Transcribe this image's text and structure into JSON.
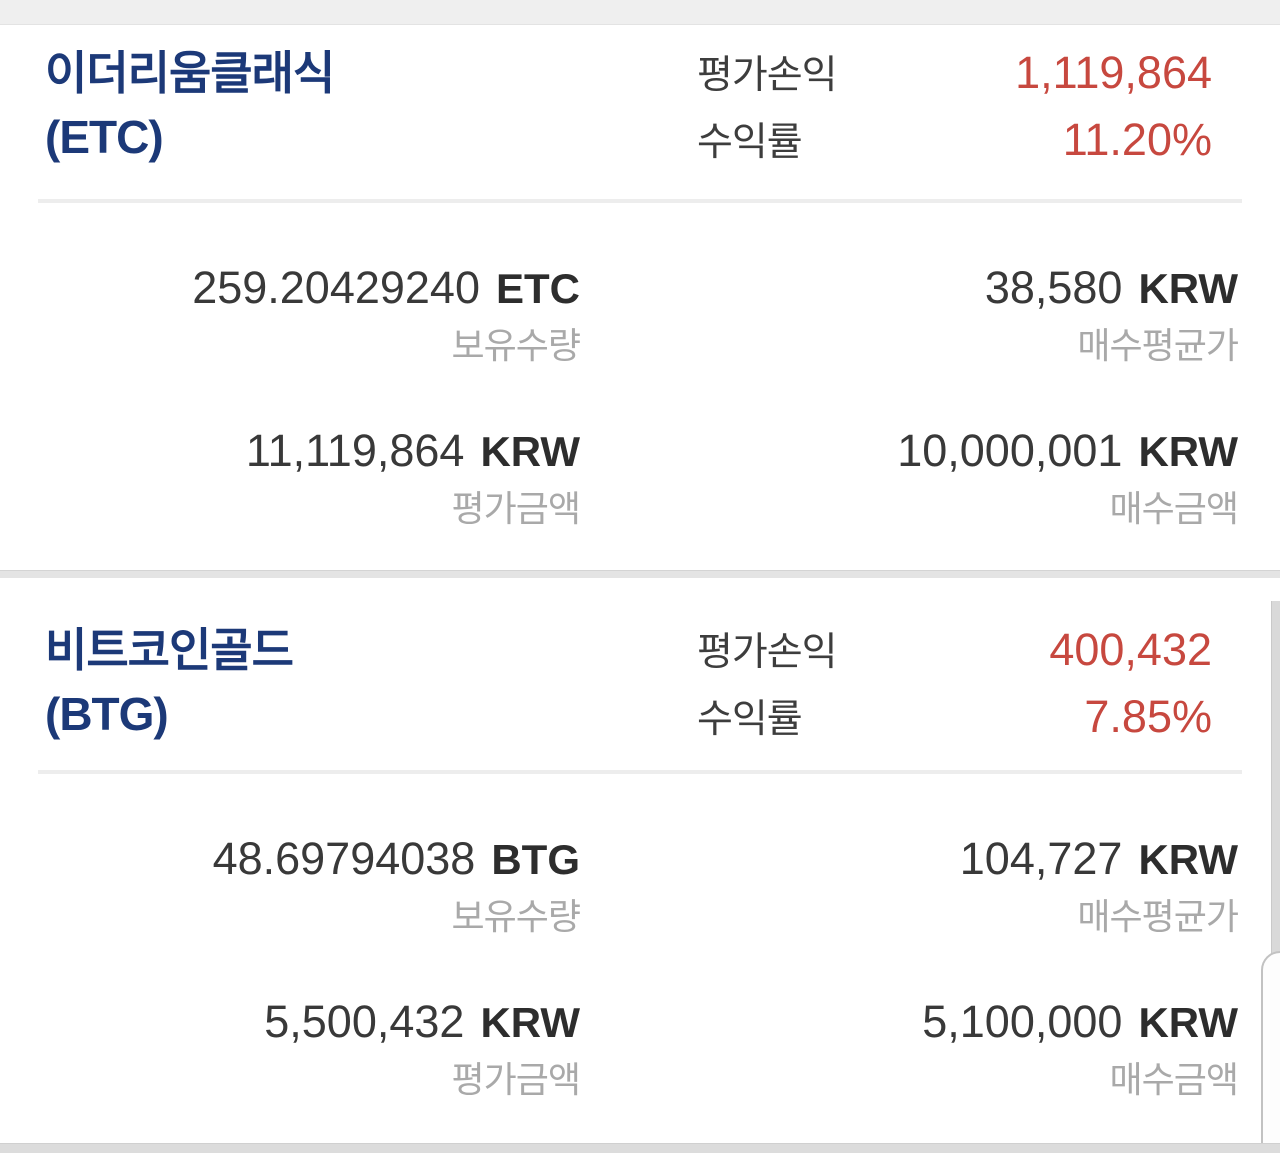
{
  "labels": {
    "eval_profit_loss": "평가손익",
    "return_rate": "수익률",
    "holding_quantity": "보유수량",
    "avg_buy_price": "매수평균가",
    "eval_amount": "평가금액",
    "buy_amount": "매수금액"
  },
  "colors": {
    "coin_name_navy": "#1c3978",
    "profit_red": "#c7483f",
    "number_dark": "#393939",
    "label_gray": "#a9a9a9",
    "separator_gray": "#e4e4e4"
  },
  "holdings": [
    {
      "name_kr": "이더리움클래식",
      "symbol_paren": "(ETC)",
      "eval_profit_loss": "1,119,864",
      "return_rate": "11.20%",
      "quantity": "259.20429240",
      "quantity_unit": "ETC",
      "avg_buy_price": "38,580",
      "avg_buy_price_unit": "KRW",
      "eval_amount": "11,119,864",
      "eval_amount_unit": "KRW",
      "buy_amount": "10,000,001",
      "buy_amount_unit": "KRW"
    },
    {
      "name_kr": "비트코인골드",
      "symbol_paren": "(BTG)",
      "eval_profit_loss": "400,432",
      "return_rate": "7.85%",
      "quantity": "48.69794038",
      "quantity_unit": "BTG",
      "avg_buy_price": "104,727",
      "avg_buy_price_unit": "KRW",
      "eval_amount": "5,500,432",
      "eval_amount_unit": "KRW",
      "buy_amount": "5,100,000",
      "buy_amount_unit": "KRW"
    }
  ]
}
